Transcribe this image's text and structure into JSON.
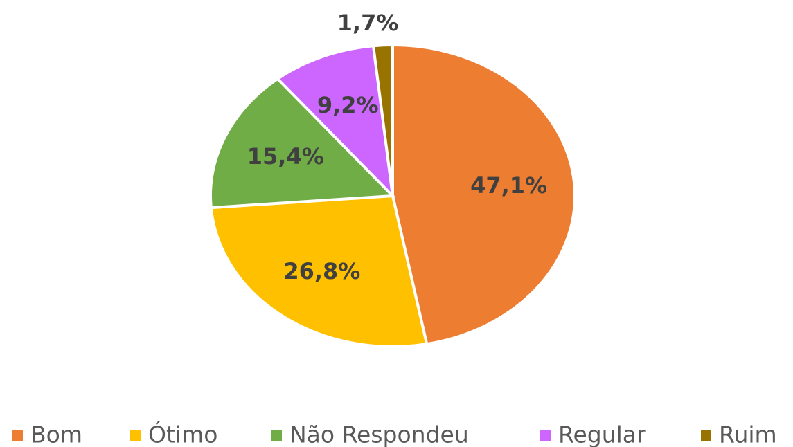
{
  "chart_data": {
    "type": "pie",
    "categories": [
      "Bom",
      "Ótimo",
      "Não Respondeu",
      "Regular",
      "Ruim"
    ],
    "values": [
      47.1,
      26.8,
      15.4,
      9.2,
      1.7
    ],
    "value_labels": [
      "47,1%",
      "26,8%",
      "15,4%",
      "9,2%",
      "1,7%"
    ],
    "colors": [
      "#ed7d31",
      "#ffc000",
      "#70ad47",
      "#cc66ff",
      "#997300"
    ],
    "legend": "bottom"
  }
}
